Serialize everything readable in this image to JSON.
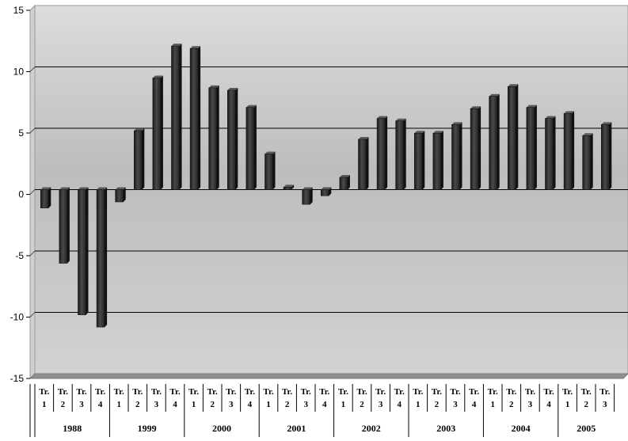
{
  "chart_data": {
    "type": "bar",
    "title": "",
    "xlabel": "",
    "ylabel": "",
    "ylim": [
      -15,
      15
    ],
    "yticks": [
      -15,
      -10,
      -5,
      0,
      5,
      10,
      15
    ],
    "grid": true,
    "legend": "none",
    "colors": {
      "bar": "#2e2e2e",
      "plot_bg_top": "#dcdcdc",
      "plot_bg_bottom": "#bdbdbd",
      "floor": "#8f8f8f",
      "gridline": "#000000"
    },
    "years": [
      "1988",
      "1999",
      "2000",
      "2001",
      "2002",
      "2003",
      "2004",
      "2005"
    ],
    "quarter_prefix": "Tr.",
    "quarters": [
      "1",
      "2",
      "3",
      "4"
    ],
    "values": [
      -1.5,
      -6.0,
      -10.2,
      -11.2,
      -1.0,
      4.8,
      9.1,
      11.7,
      11.5,
      8.3,
      8.1,
      6.7,
      2.9,
      0.2,
      -1.2,
      -0.5,
      1.0,
      4.1,
      5.8,
      5.6,
      4.6,
      4.6,
      5.3,
      6.6,
      7.6,
      8.4,
      6.7,
      5.8,
      6.2,
      4.4,
      5.3
    ]
  }
}
